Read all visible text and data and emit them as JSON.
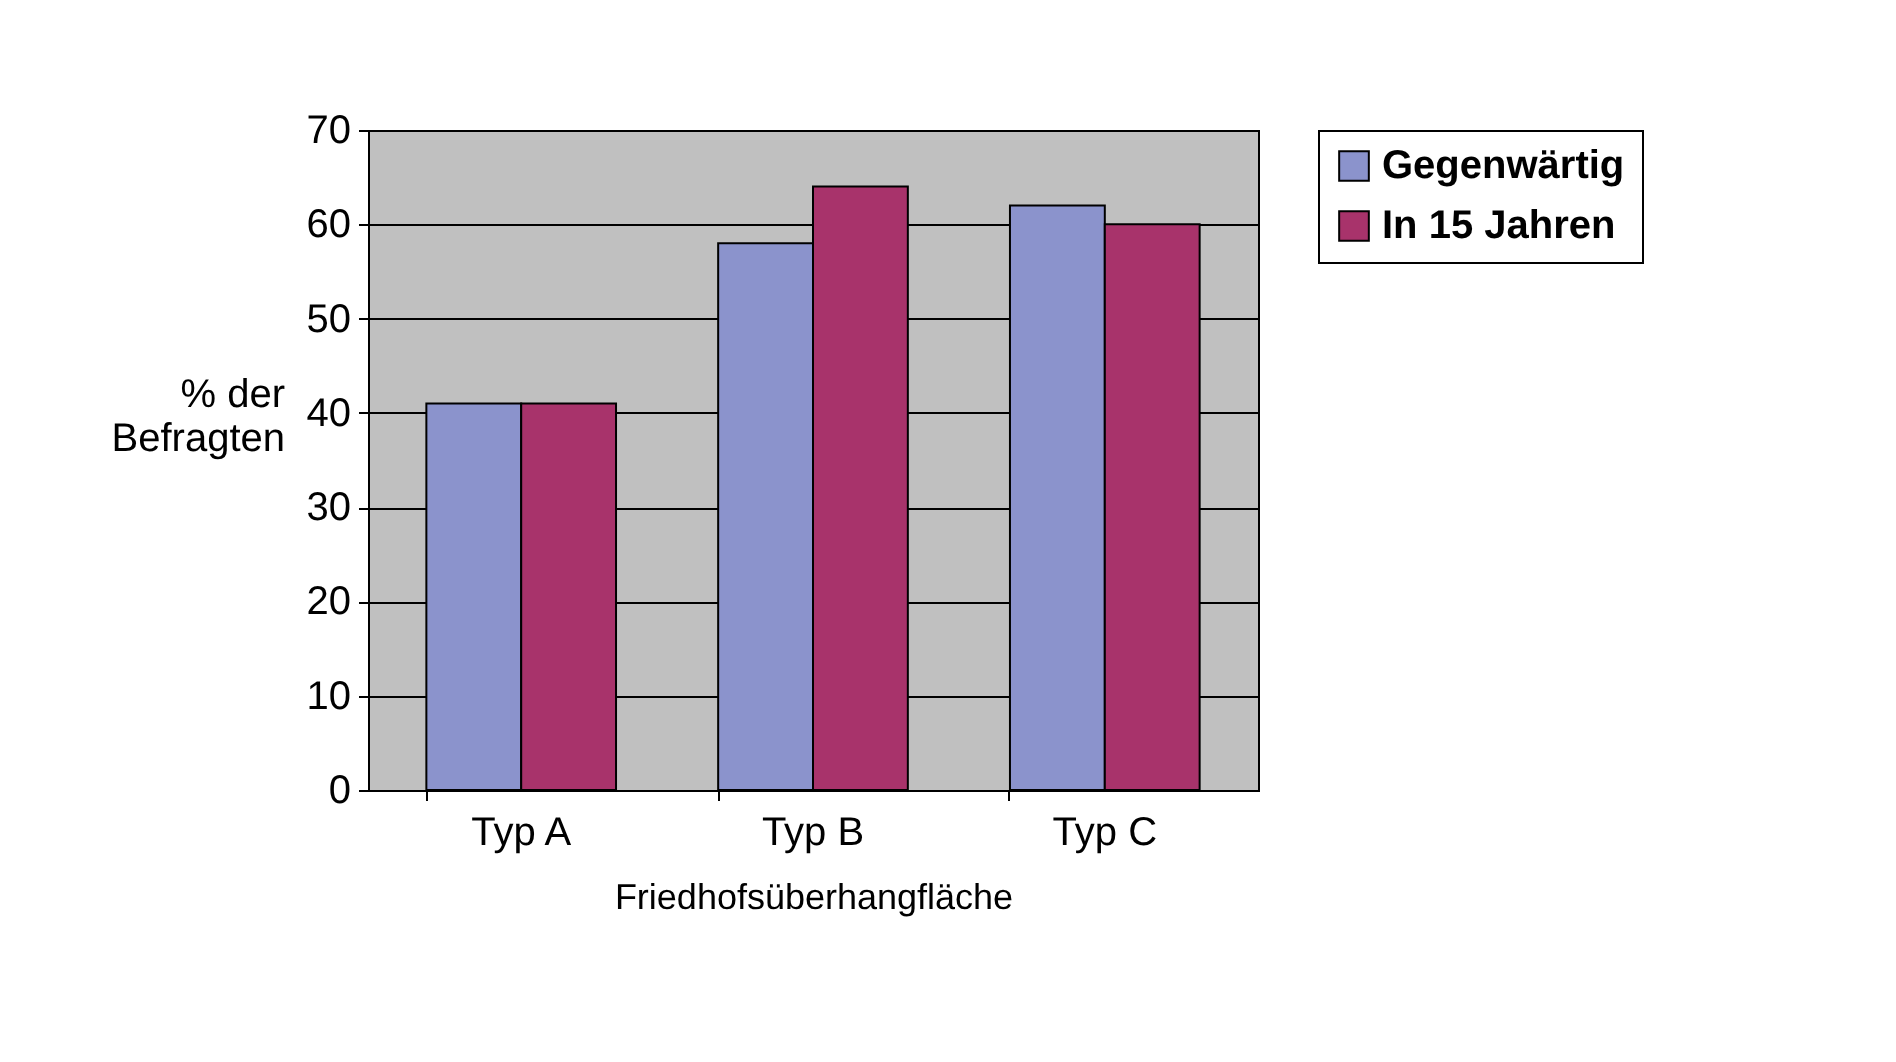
{
  "chart_data": {
    "type": "bar",
    "xlabel": "Friedhofsüberhangfläche",
    "ylabel": "% der Befragten",
    "categories": [
      "Typ A",
      "Typ B",
      "Typ C"
    ],
    "series": [
      {
        "name": "Gegenwärtig",
        "color": "#8b93cc",
        "values": [
          41,
          58,
          62
        ]
      },
      {
        "name": "In 15 Jahren",
        "color": "#a8336b",
        "values": [
          41,
          64,
          60
        ]
      }
    ],
    "ylim": [
      0,
      70
    ],
    "yticks": [
      0,
      10,
      20,
      30,
      40,
      50,
      60,
      70
    ],
    "grid": "y",
    "legend": "right"
  }
}
